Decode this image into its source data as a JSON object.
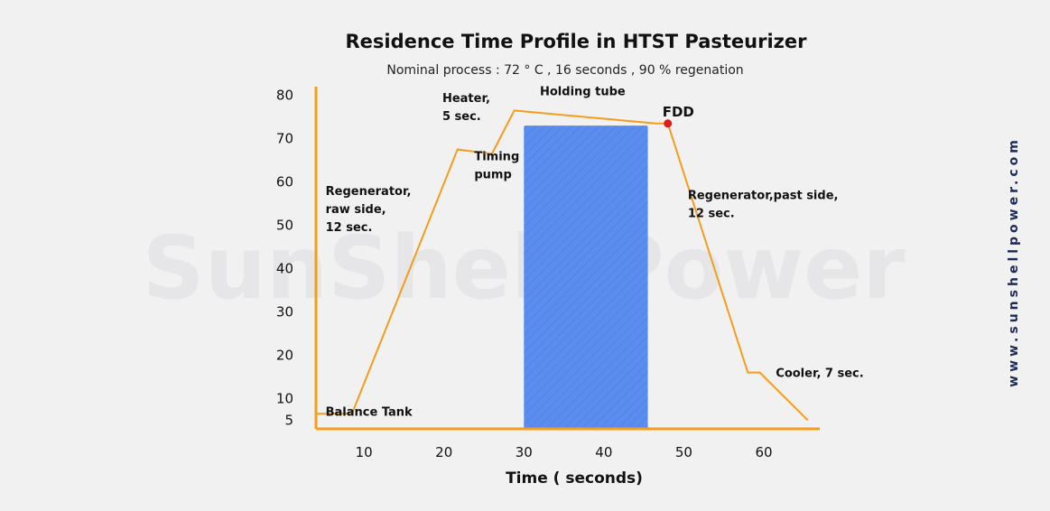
{
  "chart_data": {
    "type": "line",
    "title": "Residence Time Profile in HTST Pasteurizer",
    "subtitle": "Nominal process : 72 ° C , 16 seconds , 90 % regenation",
    "xlabel": "Time ( seconds)",
    "ylabel": "",
    "x_ticks": [
      10,
      20,
      30,
      40,
      50,
      60
    ],
    "y_ticks": [
      5,
      10,
      20,
      30,
      40,
      50,
      60,
      70,
      80
    ],
    "xlim": [
      4,
      67
    ],
    "ylim": [
      3,
      82
    ],
    "grid": false,
    "series": [
      {
        "name": "",
        "color": "#f59c1a",
        "x": [
          4,
          8.5,
          21.7,
          26,
          28.8,
          46.5,
          48,
          58,
          59.5,
          65.5
        ],
        "y": [
          6.5,
          6.5,
          67.5,
          66.5,
          76.5,
          73.5,
          73.5,
          16,
          16,
          5
        ]
      }
    ],
    "holding_region": {
      "x_start": 30,
      "x_end": 45.5,
      "y_top": 73,
      "color": "#5b8def"
    },
    "markers": [
      {
        "label": "FDD",
        "x": 48,
        "y": 73.5,
        "color": "#e01b1b"
      }
    ],
    "annotations": [
      {
        "lines": [
          "Regenerator,",
          "raw side,",
          "12 sec."
        ],
        "x": 5.2,
        "y": 57
      },
      {
        "lines": [
          "Heater,",
          "5 sec."
        ],
        "x": 19.8,
        "y": 78.5
      },
      {
        "lines": [
          "Timing",
          "pump"
        ],
        "x": 23.8,
        "y": 65
      },
      {
        "lines": [
          "Holding tube"
        ],
        "x": 32,
        "y": 80
      },
      {
        "lines": [
          "Regenerator,past side,",
          "12 sec."
        ],
        "x": 50.5,
        "y": 56
      },
      {
        "lines": [
          "Cooler, 7 sec."
        ],
        "x": 61.5,
        "y": 15
      },
      {
        "lines": [
          "Balance Tank"
        ],
        "x": 5.2,
        "y": 6
      }
    ],
    "watermark": "SunShell Power"
  },
  "side_url": "www.sunshellpower.com"
}
